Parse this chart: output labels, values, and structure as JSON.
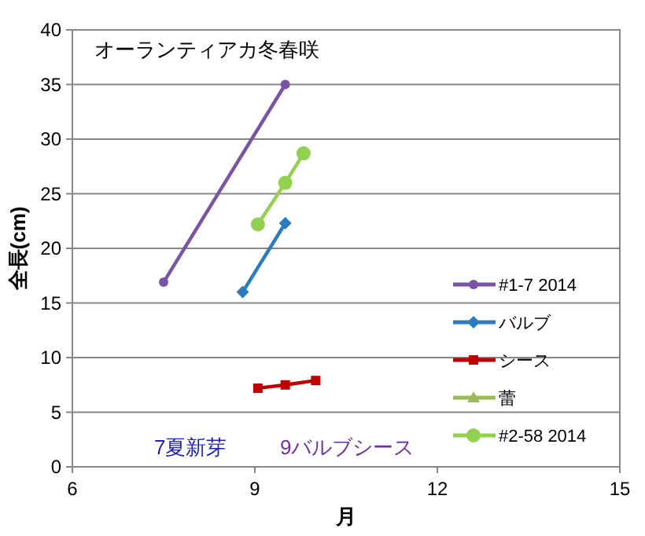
{
  "chart_data": {
    "type": "line",
    "title": "オーランティアカ冬春咲",
    "xlabel": "月",
    "ylabel": "全長(cm)",
    "xlim": [
      6,
      15
    ],
    "xticks": [
      6,
      9,
      12,
      15
    ],
    "ylim": [
      0,
      40
    ],
    "yticks": [
      0,
      5,
      10,
      15,
      20,
      25,
      30,
      35,
      40
    ],
    "grid": "y",
    "legend": "right",
    "series": [
      {
        "name": "#1-7 2014",
        "color": "#7b52a6",
        "marker": "circle",
        "x": [
          7.5,
          9.5
        ],
        "values": [
          16.9,
          35
        ]
      },
      {
        "name": "バルブ",
        "color": "#2a7bbf",
        "marker": "diamond",
        "x": [
          8.8,
          9.5
        ],
        "values": [
          16,
          22.3
        ]
      },
      {
        "name": "シース",
        "color": "#c00000",
        "marker": "square",
        "x": [
          9.05,
          9.5,
          10
        ],
        "values": [
          7.2,
          7.5,
          7.9
        ]
      },
      {
        "name": "蕾",
        "color": "#9bbb59",
        "marker": "triangle"
      },
      {
        "name": "#2-58 2014",
        "color": "#92d050",
        "marker": "circle",
        "x": [
          9.05,
          9.5,
          9.8
        ],
        "values": [
          22.2,
          26,
          28.7
        ]
      }
    ],
    "annotations": [
      "7夏新芽",
      "9バルブシース"
    ]
  }
}
